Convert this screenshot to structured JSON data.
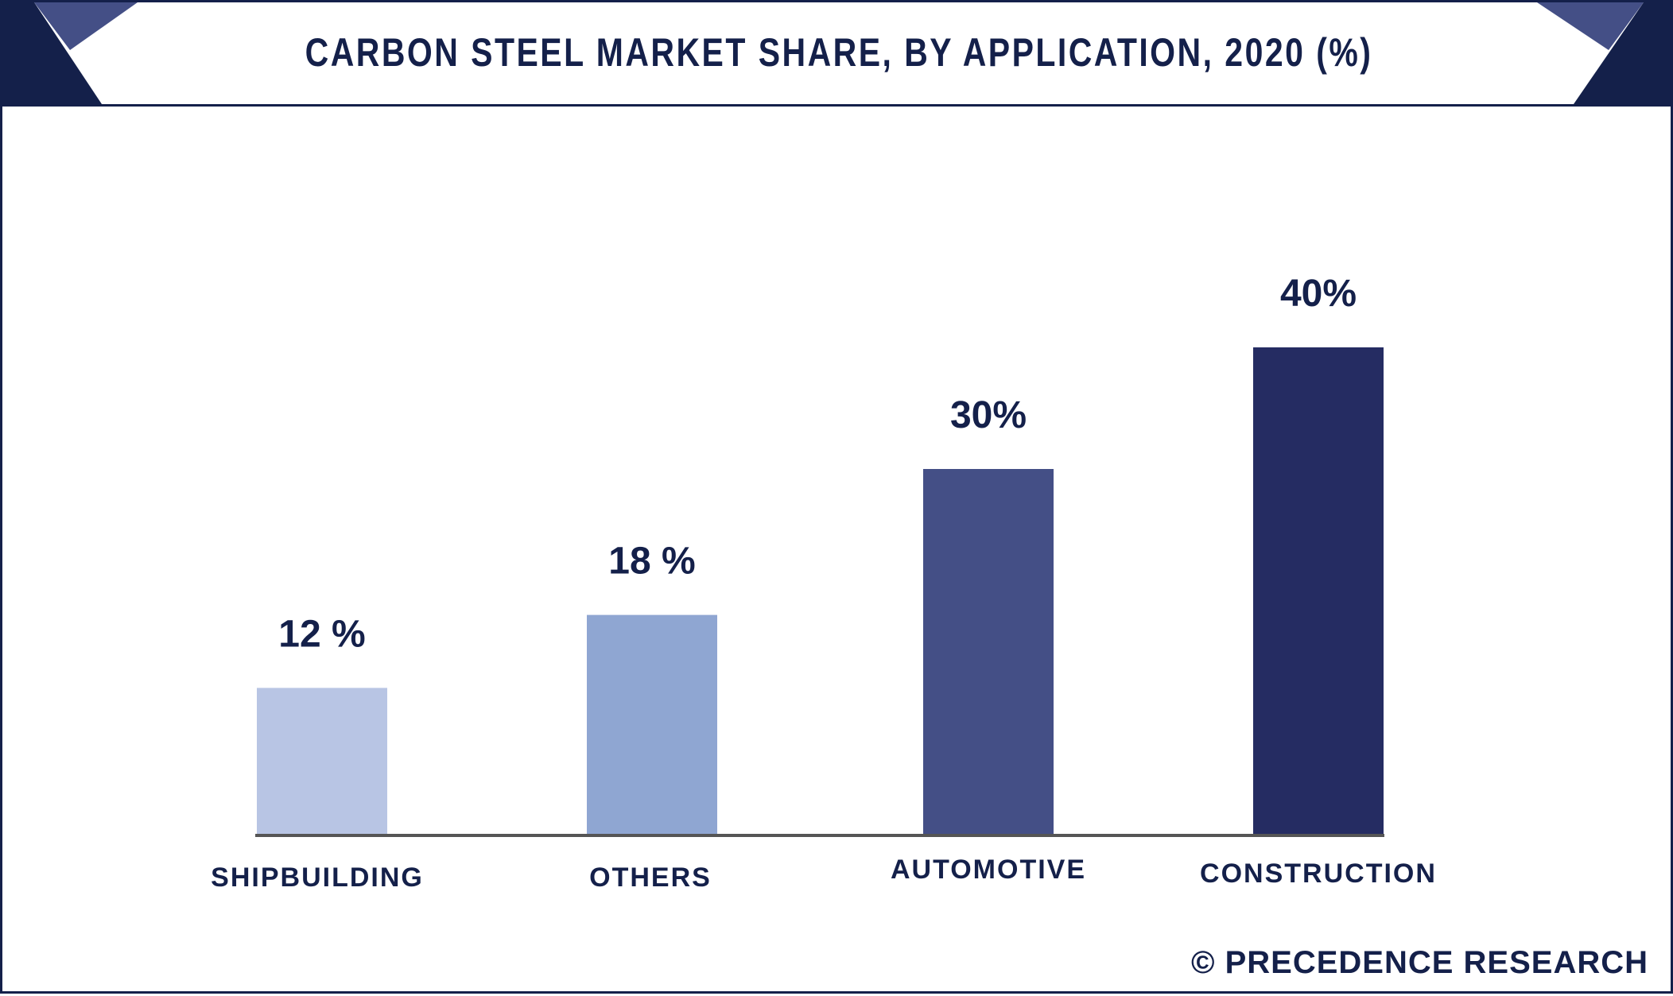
{
  "brand": {
    "text": "© PRECEDENCE RESEARCH"
  },
  "colors": {
    "dark_navy": "#14204a",
    "banner_accent": "#444f86",
    "axis": "#555555"
  },
  "chart_data": {
    "type": "bar",
    "title": "CARBON STEEL MARKET SHARE, BY APPLICATION, 2020 (%)",
    "xlabel": "",
    "ylabel": "",
    "ylim": [
      0,
      40
    ],
    "grid": false,
    "categories": [
      "SHIPBUILDING",
      "OTHERS",
      "AUTOMOTIVE",
      "CONSTRUCTION"
    ],
    "values": [
      12,
      18,
      30,
      40
    ],
    "value_labels": [
      "12 %",
      "18 %",
      "30%",
      "40%"
    ],
    "bar_colors": [
      "#b8c5e4",
      "#8fa6d2",
      "#444f86",
      "#252c62"
    ]
  }
}
